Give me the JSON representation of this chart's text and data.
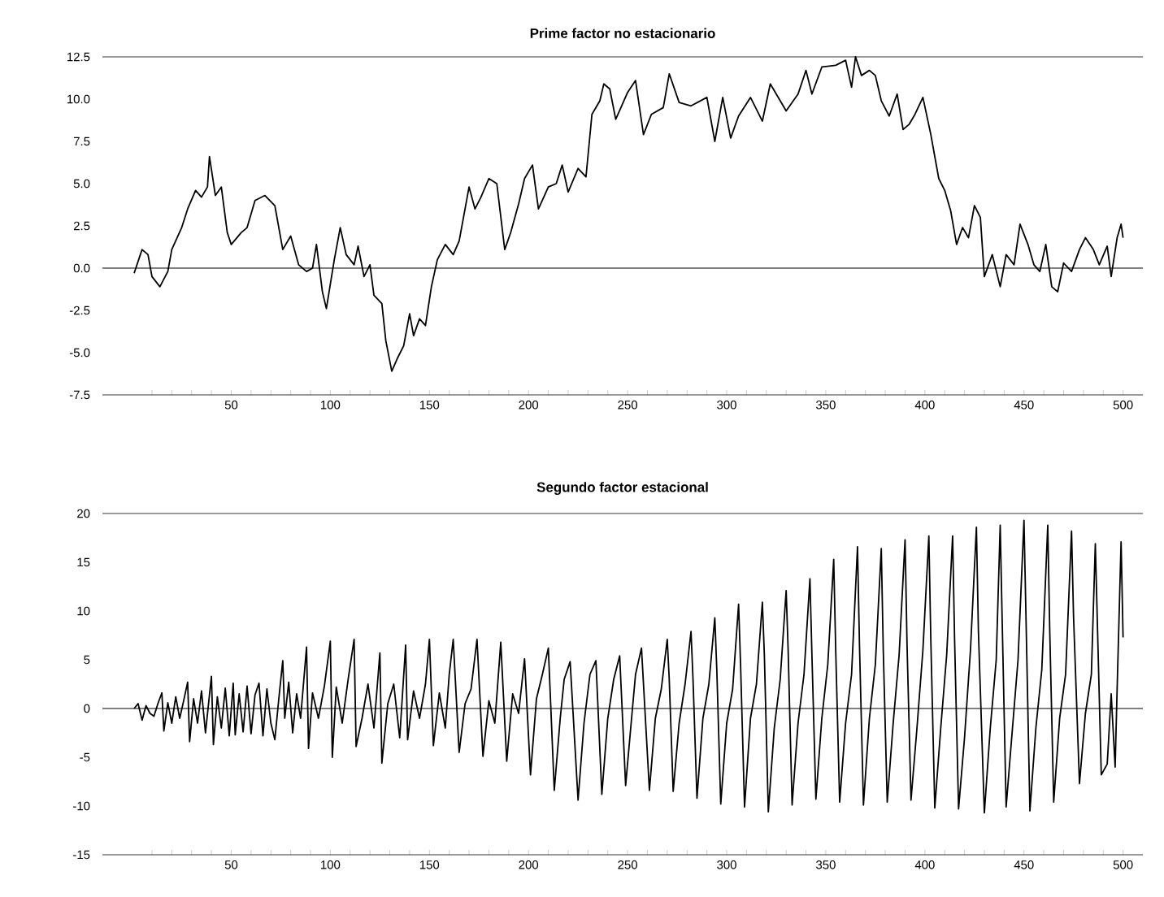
{
  "chart_data": [
    {
      "type": "line",
      "title": "Prime factor no estacionario",
      "color": "#000000",
      "x": [
        1,
        5,
        8,
        10,
        14,
        18,
        20,
        25,
        28,
        32,
        35,
        38,
        39,
        42,
        45,
        48,
        50,
        55,
        58,
        62,
        67,
        72,
        76,
        80,
        84,
        88,
        91,
        93,
        96,
        98,
        102,
        105,
        108,
        112,
        114,
        117,
        120,
        122,
        126,
        128,
        131,
        134,
        137,
        140,
        142,
        145,
        148,
        151,
        154,
        158,
        162,
        165,
        170,
        173,
        176,
        180,
        184,
        188,
        191,
        195,
        198,
        202,
        205,
        210,
        214,
        217,
        220,
        225,
        229,
        232,
        236,
        238,
        241,
        244,
        250,
        254,
        258,
        262,
        268,
        271,
        276,
        282,
        290,
        294,
        298,
        302,
        306,
        312,
        318,
        322,
        330,
        336,
        340,
        343,
        348,
        355,
        360,
        363,
        365,
        368,
        372,
        375,
        378,
        382,
        386,
        389,
        392,
        395,
        399,
        403,
        407,
        410,
        413,
        416,
        419,
        422,
        425,
        428,
        430,
        434,
        438,
        441,
        445,
        448,
        452,
        455,
        458,
        461,
        464,
        467,
        470,
        474,
        478,
        481,
        485,
        488,
        492,
        494,
        497,
        499,
        500
      ],
      "values": [
        -0.3,
        1.1,
        0.8,
        -0.5,
        -1.1,
        -0.2,
        1.1,
        2.4,
        3.5,
        4.6,
        4.2,
        4.8,
        6.6,
        4.3,
        4.8,
        2.1,
        1.4,
        2.1,
        2.4,
        4.0,
        4.3,
        3.7,
        1.1,
        1.9,
        0.2,
        -0.2,
        0,
        1.4,
        -1.4,
        -2.4,
        0.5,
        2.4,
        0.8,
        0.2,
        1.3,
        -0.5,
        0.2,
        -1.6,
        -2.1,
        -4.3,
        -6.1,
        -5.3,
        -4.6,
        -2.7,
        -4.0,
        -3.0,
        -3.4,
        -1.1,
        0.5,
        1.4,
        0.8,
        1.6,
        4.8,
        3.5,
        4.2,
        5.3,
        5.0,
        1.1,
        2.1,
        3.8,
        5.3,
        6.1,
        3.5,
        4.8,
        5.0,
        6.1,
        4.5,
        5.9,
        5.4,
        9.1,
        9.9,
        10.9,
        10.6,
        8.8,
        10.4,
        11.1,
        7.9,
        9.1,
        9.5,
        11.5,
        9.8,
        9.6,
        10.1,
        7.5,
        10.1,
        7.7,
        9.0,
        10.1,
        8.7,
        10.9,
        9.3,
        10.3,
        11.7,
        10.3,
        11.9,
        12.0,
        12.3,
        10.7,
        12.5,
        11.4,
        11.7,
        11.4,
        9.9,
        9.0,
        10.3,
        8.2,
        8.5,
        9.1,
        10.1,
        7.9,
        5.3,
        4.6,
        3.4,
        1.4,
        2.4,
        1.8,
        3.7,
        3.0,
        -0.5,
        0.8,
        -1.1,
        0.8,
        0.2,
        2.6,
        1.4,
        0.2,
        -0.2,
        1.4,
        -1.1,
        -1.4,
        0.3,
        -0.2,
        1.1,
        1.8,
        1.1,
        0.2,
        1.3,
        -0.5,
        1.8,
        2.6,
        1.8
      ],
      "xlim": [
        -15,
        510
      ],
      "ylim": [
        -7.5,
        12.5
      ],
      "xticks": [
        {
          "value": 10,
          "label": null
        },
        {
          "value": 20,
          "label": null
        },
        {
          "value": 30,
          "label": null
        },
        {
          "value": 40,
          "label": null
        },
        50,
        {
          "value": 60,
          "label": null
        },
        {
          "value": 70,
          "label": null
        },
        {
          "value": 80,
          "label": null
        },
        {
          "value": 90,
          "label": null
        },
        100,
        {
          "value": 110,
          "label": null
        },
        {
          "value": 120,
          "label": null
        },
        {
          "value": 130,
          "label": null
        },
        {
          "value": 140,
          "label": null
        },
        150,
        {
          "value": 160,
          "label": null
        },
        {
          "value": 170,
          "label": null
        },
        {
          "value": 180,
          "label": null
        },
        {
          "value": 190,
          "label": null
        },
        200,
        {
          "value": 210,
          "label": null
        },
        {
          "value": 220,
          "label": null
        },
        {
          "value": 230,
          "label": null
        },
        {
          "value": 240,
          "label": null
        },
        250,
        {
          "value": 260,
          "label": null
        },
        {
          "value": 270,
          "label": null
        },
        {
          "value": 280,
          "label": null
        },
        {
          "value": 290,
          "label": null
        },
        300,
        {
          "value": 310,
          "label": null
        },
        {
          "value": 320,
          "label": null
        },
        {
          "value": 330,
          "label": null
        },
        {
          "value": 340,
          "label": null
        },
        350,
        {
          "value": 360,
          "label": null
        },
        {
          "value": 370,
          "label": null
        },
        {
          "value": 380,
          "label": null
        },
        {
          "value": 390,
          "label": null
        },
        400,
        {
          "value": 410,
          "label": null
        },
        {
          "value": 420,
          "label": null
        },
        {
          "value": 430,
          "label": null
        },
        {
          "value": 440,
          "label": null
        },
        450,
        {
          "value": 460,
          "label": null
        },
        {
          "value": 470,
          "label": null
        },
        {
          "value": 480,
          "label": null
        },
        {
          "value": 490,
          "label": null
        },
        500
      ],
      "yticks": [
        -7.5,
        {
          "value": -5,
          "label": "-5.0"
        },
        -2.5,
        {
          "value": 0,
          "label": "0.0"
        },
        2.5,
        {
          "value": 5,
          "label": "5.0"
        },
        7.5,
        {
          "value": 10,
          "label": "10.0"
        },
        12.5
      ],
      "ref_lines": [
        {
          "axis": "y",
          "value": 0
        }
      ]
    },
    {
      "type": "line",
      "title": "Segundo factor estacional",
      "color": "#000000",
      "x": [
        1,
        3,
        5,
        7,
        9,
        11,
        13,
        15,
        16,
        18,
        20,
        22,
        24,
        26,
        28,
        29,
        31,
        33,
        35,
        37,
        40,
        41,
        43,
        45,
        47,
        49,
        51,
        52,
        54,
        56,
        58,
        60,
        62,
        64,
        66,
        68,
        70,
        72,
        74,
        76,
        77,
        79,
        81,
        83,
        85,
        88,
        89,
        91,
        94,
        97,
        100,
        101,
        103,
        106,
        109,
        112,
        113,
        116,
        119,
        122,
        125,
        126,
        129,
        132,
        135,
        138,
        139,
        142,
        145,
        148,
        150,
        152,
        155,
        158,
        160,
        162,
        165,
        168,
        171,
        174,
        177,
        180,
        183,
        186,
        189,
        192,
        195,
        198,
        201,
        204,
        207,
        210,
        213,
        216,
        218,
        221,
        225,
        228,
        231,
        234,
        237,
        240,
        243,
        246,
        249,
        252,
        254,
        257,
        261,
        264,
        267,
        270,
        271,
        273,
        276,
        279,
        282,
        283,
        285,
        288,
        291,
        294,
        295,
        297,
        300,
        303,
        306,
        307,
        309,
        312,
        315,
        318,
        319,
        321,
        324,
        327,
        330,
        331,
        333,
        336,
        339,
        342,
        343,
        345,
        348,
        351,
        354,
        355,
        357,
        360,
        363,
        366,
        367,
        369,
        372,
        375,
        378,
        379,
        381,
        384,
        387,
        390,
        391,
        393,
        396,
        399,
        402,
        403,
        405,
        408,
        411,
        414,
        415,
        417,
        420,
        423,
        426,
        427,
        430,
        433,
        436,
        438,
        439,
        441,
        444,
        447,
        450,
        451,
        453,
        456,
        459,
        462,
        463,
        465,
        468,
        471,
        474,
        475,
        478,
        481,
        484,
        486,
        487,
        489,
        492,
        494,
        496,
        497,
        499,
        500
      ],
      "values": [
        0,
        0.5,
        -1.2,
        0.3,
        -0.5,
        -0.8,
        0.5,
        1.6,
        -2.3,
        0.6,
        -1.5,
        1.2,
        -1.0,
        0.8,
        2.7,
        -3.4,
        1.0,
        -1.5,
        1.8,
        -2.5,
        3.3,
        -3.7,
        1.2,
        -2.0,
        2.1,
        -2.8,
        2.6,
        -2.7,
        1.5,
        -2.4,
        2.3,
        -2.6,
        1.4,
        2.6,
        -2.8,
        2.0,
        -1.5,
        -3.2,
        1.0,
        4.9,
        -1.0,
        2.7,
        -2.5,
        1.5,
        -1.0,
        6.3,
        -4.1,
        1.6,
        -1.0,
        2.3,
        6.9,
        -5.0,
        2.2,
        -1.5,
        3.0,
        7.1,
        -3.9,
        -1.0,
        2.5,
        -2.0,
        5.7,
        -5.6,
        0.5,
        2.5,
        -3.0,
        6.5,
        -3.2,
        1.8,
        -1.0,
        2.5,
        7.1,
        -3.8,
        1.6,
        -2.0,
        3.5,
        7.1,
        -4.5,
        0.5,
        2.0,
        7.1,
        -4.9,
        0.8,
        -1.5,
        6.8,
        -5.4,
        1.5,
        -0.5,
        5.1,
        -6.8,
        1.0,
        3.5,
        6.2,
        -8.4,
        -1.0,
        3.0,
        4.8,
        -9.4,
        -1.5,
        3.5,
        4.9,
        -8.8,
        -1.0,
        3.0,
        5.4,
        -7.9,
        -1.0,
        3.5,
        6.2,
        -8.4,
        -1.0,
        2.0,
        7.1,
        3.0,
        -8.5,
        -1.5,
        2.5,
        7.9,
        3.0,
        -9.2,
        -1.0,
        2.5,
        9.3,
        4.0,
        -9.8,
        -1.5,
        2.0,
        10.7,
        4.5,
        -10.1,
        -1.0,
        2.5,
        10.9,
        5.5,
        -10.6,
        -2.0,
        3.0,
        12.1,
        6.0,
        -9.9,
        -1.5,
        3.5,
        13.3,
        5.5,
        -9.3,
        -1.0,
        4.5,
        15.3,
        6.0,
        -9.6,
        -1.5,
        3.5,
        16.6,
        6.5,
        -9.9,
        -1.0,
        4.5,
        16.4,
        6.0,
        -9.6,
        -1.5,
        5.5,
        17.3,
        6.5,
        -9.4,
        -2.0,
        6.0,
        17.7,
        7.0,
        -10.2,
        -2.0,
        5.5,
        17.7,
        7.0,
        -10.3,
        -3.0,
        6.0,
        18.6,
        8.0,
        -10.7,
        -2.0,
        5.0,
        18.8,
        9.0,
        -10.1,
        -2.5,
        5.0,
        19.3,
        9.5,
        -10.5,
        -2.0,
        4.0,
        18.8,
        8.0,
        -9.6,
        -1.0,
        3.5,
        18.2,
        9.5,
        -7.7,
        -0.5,
        3.5,
        16.9,
        9.0,
        -6.8,
        -5.7,
        1.5,
        -6.0,
        2.0,
        17.1,
        7.3
      ],
      "xlim": [
        -15,
        510
      ],
      "ylim": [
        -15,
        20
      ],
      "xticks": [
        {
          "value": 10,
          "label": null
        },
        {
          "value": 20,
          "label": null
        },
        {
          "value": 30,
          "label": null
        },
        {
          "value": 40,
          "label": null
        },
        50,
        {
          "value": 60,
          "label": null
        },
        {
          "value": 70,
          "label": null
        },
        {
          "value": 80,
          "label": null
        },
        {
          "value": 90,
          "label": null
        },
        100,
        {
          "value": 110,
          "label": null
        },
        {
          "value": 120,
          "label": null
        },
        {
          "value": 130,
          "label": null
        },
        {
          "value": 140,
          "label": null
        },
        150,
        {
          "value": 160,
          "label": null
        },
        {
          "value": 170,
          "label": null
        },
        {
          "value": 180,
          "label": null
        },
        {
          "value": 190,
          "label": null
        },
        200,
        {
          "value": 210,
          "label": null
        },
        {
          "value": 220,
          "label": null
        },
        {
          "value": 230,
          "label": null
        },
        {
          "value": 240,
          "label": null
        },
        250,
        {
          "value": 260,
          "label": null
        },
        {
          "value": 270,
          "label": null
        },
        {
          "value": 280,
          "label": null
        },
        {
          "value": 290,
          "label": null
        },
        300,
        {
          "value": 310,
          "label": null
        },
        {
          "value": 320,
          "label": null
        },
        {
          "value": 330,
          "label": null
        },
        {
          "value": 340,
          "label": null
        },
        350,
        {
          "value": 360,
          "label": null
        },
        {
          "value": 370,
          "label": null
        },
        {
          "value": 380,
          "label": null
        },
        {
          "value": 390,
          "label": null
        },
        400,
        {
          "value": 410,
          "label": null
        },
        {
          "value": 420,
          "label": null
        },
        {
          "value": 430,
          "label": null
        },
        {
          "value": 440,
          "label": null
        },
        450,
        {
          "value": 460,
          "label": null
        },
        {
          "value": 470,
          "label": null
        },
        {
          "value": 480,
          "label": null
        },
        {
          "value": 490,
          "label": null
        },
        500
      ],
      "yticks": [
        -15,
        -10,
        -5,
        0,
        5,
        10,
        15,
        20
      ],
      "ref_lines": [
        {
          "axis": "y",
          "value": 0
        }
      ]
    }
  ]
}
